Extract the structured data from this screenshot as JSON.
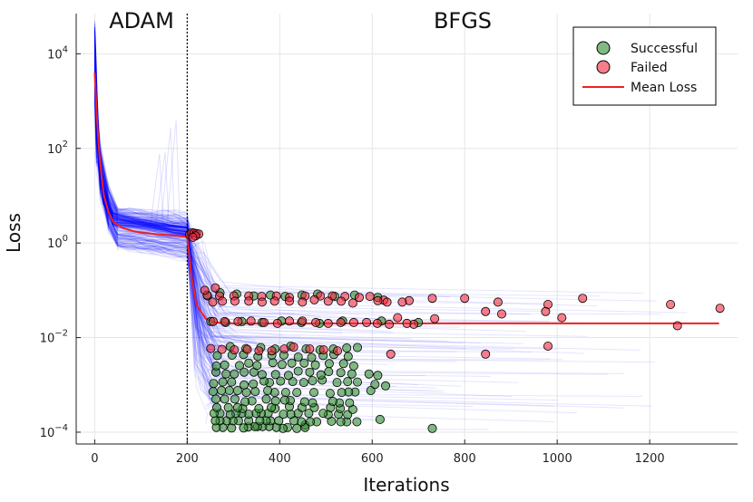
{
  "chart_data": {
    "type": "line",
    "title": "",
    "xlabel": "Iterations",
    "ylabel": "Loss",
    "yscale": "log10",
    "xlim": [
      -40,
      1390
    ],
    "ylim_exponent": [
      -4.25,
      4.85
    ],
    "x_ticks": [
      {
        "value": 0,
        "label": "0"
      },
      {
        "value": 200,
        "label": "200"
      },
      {
        "value": 400,
        "label": "400"
      },
      {
        "value": 600,
        "label": "600"
      },
      {
        "value": 800,
        "label": "800"
      },
      {
        "value": 1000,
        "label": "1000"
      },
      {
        "value": 1200,
        "label": "1200"
      }
    ],
    "y_ticks": [
      {
        "exponent": 4,
        "base": "10",
        "sup": "4"
      },
      {
        "exponent": 2,
        "base": "10",
        "sup": "2"
      },
      {
        "exponent": 0,
        "base": "10",
        "sup": "0"
      },
      {
        "exponent": -2,
        "base": "10",
        "sup": "−2"
      },
      {
        "exponent": -4,
        "base": "10",
        "sup": "−4"
      }
    ],
    "grid": true,
    "phase_divider": {
      "x": 200,
      "left_label": "ADAM",
      "right_label": "BFGS"
    },
    "legend": {
      "position": "top-right",
      "entries": [
        {
          "label": "Successful",
          "color": "#2e8b2e",
          "marker": "circle"
        },
        {
          "label": "Failed",
          "color": "#f0283c",
          "marker": "circle"
        },
        {
          "label": "Mean Loss",
          "color": "#ee2222",
          "marker": "line"
        }
      ]
    },
    "colors": {
      "runs": "#0000ff",
      "mean": "#ee2222",
      "successful": "#2e8b2e",
      "failed": "#f0283c"
    },
    "mean_loss": {
      "name": "Mean Loss",
      "x": [
        0,
        2,
        5,
        10,
        15,
        20,
        30,
        40,
        60,
        80,
        100,
        140,
        180,
        200,
        205,
        210,
        220,
        240,
        260,
        300,
        400,
        600,
        1350
      ],
      "log10_y": [
        3.6,
        3.2,
        2.6,
        1.9,
        1.4,
        1.0,
        0.65,
        0.45,
        0.32,
        0.26,
        0.22,
        0.18,
        0.15,
        0.13,
        -0.3,
        -0.75,
        -1.3,
        -1.6,
        -1.68,
        -1.7,
        -1.7,
        -1.7,
        -1.7
      ]
    },
    "series": [
      {
        "name": "Successful",
        "points": [
          [
            730,
            -3.92
          ],
          [
            455,
            -3.85
          ],
          [
            455,
            -3.9
          ],
          [
            437,
            -3.92
          ],
          [
            417,
            -3.9
          ],
          [
            407,
            -3.92
          ],
          [
            393,
            -3.9
          ],
          [
            377,
            -3.88
          ],
          [
            363,
            -3.88
          ],
          [
            352,
            -3.88
          ],
          [
            346,
            -3.88
          ],
          [
            332,
            -3.89
          ],
          [
            322,
            -3.91
          ],
          [
            296,
            -3.91
          ],
          [
            277,
            -3.9
          ],
          [
            263,
            -3.9
          ],
          [
            617,
            -3.73
          ],
          [
            545,
            -3.78
          ],
          [
            567,
            -3.78
          ],
          [
            532,
            -3.78
          ],
          [
            512,
            -3.77
          ],
          [
            480,
            -3.78
          ],
          [
            466,
            -3.78
          ],
          [
            447,
            -3.78
          ],
          [
            431,
            -3.76
          ],
          [
            398,
            -3.76
          ],
          [
            380,
            -3.76
          ],
          [
            371,
            -3.76
          ],
          [
            357,
            -3.76
          ],
          [
            333,
            -3.76
          ],
          [
            311,
            -3.76
          ],
          [
            299,
            -3.76
          ],
          [
            285,
            -3.76
          ],
          [
            271,
            -3.76
          ],
          [
            261,
            -3.76
          ],
          [
            547,
            -3.63
          ],
          [
            527,
            -3.62
          ],
          [
            505,
            -3.63
          ],
          [
            494,
            -3.6
          ],
          [
            463,
            -3.6
          ],
          [
            440,
            -3.6
          ],
          [
            424,
            -3.62
          ],
          [
            408,
            -3.62
          ],
          [
            375,
            -3.6
          ],
          [
            360,
            -3.6
          ],
          [
            349,
            -3.6
          ],
          [
            333,
            -3.62
          ],
          [
            318,
            -3.6
          ],
          [
            305,
            -3.6
          ],
          [
            293,
            -3.63
          ],
          [
            271,
            -3.6
          ],
          [
            258,
            -3.6
          ],
          [
            558,
            -3.52
          ],
          [
            531,
            -3.5
          ],
          [
            510,
            -3.48
          ],
          [
            475,
            -3.48
          ],
          [
            448,
            -3.48
          ],
          [
            421,
            -3.46
          ],
          [
            390,
            -3.5
          ],
          [
            382,
            -3.48
          ],
          [
            355,
            -3.5
          ],
          [
            320,
            -3.5
          ],
          [
            309,
            -3.48
          ],
          [
            289,
            -3.48
          ],
          [
            264,
            -3.48
          ],
          [
            551,
            -3.38
          ],
          [
            529,
            -3.38
          ],
          [
            515,
            -3.35
          ],
          [
            471,
            -3.38
          ],
          [
            454,
            -3.36
          ],
          [
            423,
            -3.33
          ],
          [
            411,
            -3.32
          ],
          [
            391,
            -3.34
          ],
          [
            371,
            -3.3
          ],
          [
            340,
            -3.34
          ],
          [
            325,
            -3.36
          ],
          [
            303,
            -3.3
          ],
          [
            281,
            -3.3
          ],
          [
            262,
            -3.3
          ],
          [
            597,
            -3.12
          ],
          [
            563,
            -3.15
          ],
          [
            549,
            -3.15
          ],
          [
            534,
            -3.16
          ],
          [
            509,
            -3.18
          ],
          [
            474,
            -3.16
          ],
          [
            437,
            -3.16
          ],
          [
            413,
            -3.16
          ],
          [
            389,
            -3.16
          ],
          [
            374,
            -3.12
          ],
          [
            347,
            -3.14
          ],
          [
            328,
            -3.16
          ],
          [
            309,
            -3.12
          ],
          [
            291,
            -3.12
          ],
          [
            274,
            -3.12
          ],
          [
            256,
            -3.14
          ],
          [
            629,
            -3.02
          ],
          [
            606,
            -2.99
          ],
          [
            568,
            -2.94
          ],
          [
            547,
            -2.93
          ],
          [
            524,
            -2.95
          ],
          [
            492,
            -2.9
          ],
          [
            471,
            -2.91
          ],
          [
            452,
            -2.95
          ],
          [
            428,
            -2.93
          ],
          [
            402,
            -2.92
          ],
          [
            378,
            -2.95
          ],
          [
            366,
            -2.92
          ],
          [
            343,
            -2.98
          ],
          [
            323,
            -3.0
          ],
          [
            296,
            -2.94
          ],
          [
            277,
            -2.94
          ],
          [
            257,
            -2.97
          ],
          [
            612,
            -2.8
          ],
          [
            593,
            -2.77
          ],
          [
            556,
            -2.77
          ],
          [
            532,
            -2.74
          ],
          [
            506,
            -2.72
          ],
          [
            489,
            -2.79
          ],
          [
            465,
            -2.73
          ],
          [
            440,
            -2.71
          ],
          [
            419,
            -2.8
          ],
          [
            391,
            -2.78
          ],
          [
            362,
            -2.78
          ],
          [
            344,
            -2.73
          ],
          [
            323,
            -2.73
          ],
          [
            302,
            -2.77
          ],
          [
            284,
            -2.77
          ],
          [
            262,
            -2.73
          ],
          [
            560,
            -2.6
          ],
          [
            538,
            -2.55
          ],
          [
            507,
            -2.55
          ],
          [
            477,
            -2.58
          ],
          [
            453,
            -2.54
          ],
          [
            426,
            -2.54
          ],
          [
            405,
            -2.57
          ],
          [
            385,
            -2.53
          ],
          [
            351,
            -2.59
          ],
          [
            333,
            -2.54
          ],
          [
            313,
            -2.59
          ],
          [
            281,
            -2.58
          ],
          [
            263,
            -2.6
          ],
          [
            548,
            -2.4
          ],
          [
            517,
            -2.36
          ],
          [
            494,
            -2.38
          ],
          [
            469,
            -2.42
          ],
          [
            440,
            -2.41
          ],
          [
            409,
            -2.37
          ],
          [
            383,
            -2.37
          ],
          [
            353,
            -2.4
          ],
          [
            322,
            -2.36
          ],
          [
            297,
            -2.37
          ],
          [
            265,
            -2.38
          ],
          [
            568,
            -2.21
          ],
          [
            545,
            -2.22
          ],
          [
            516,
            -2.24
          ],
          [
            487,
            -2.26
          ],
          [
            457,
            -2.24
          ],
          [
            424,
            -2.18
          ],
          [
            390,
            -2.24
          ],
          [
            359,
            -2.21
          ],
          [
            327,
            -2.23
          ],
          [
            293,
            -2.19
          ],
          [
            700,
            -1.68
          ],
          [
            620,
            -1.65
          ],
          [
            536,
            -1.65
          ],
          [
            486,
            -1.7
          ],
          [
            447,
            -1.68
          ],
          [
            404,
            -1.65
          ],
          [
            362,
            -1.68
          ],
          [
            318,
            -1.66
          ],
          [
            283,
            -1.68
          ],
          [
            251,
            -1.66
          ],
          [
            612,
            -1.15
          ],
          [
            562,
            -1.1
          ],
          [
            519,
            -1.13
          ],
          [
            482,
            -1.08
          ],
          [
            448,
            -1.1
          ],
          [
            412,
            -1.13
          ],
          [
            380,
            -1.1
          ],
          [
            344,
            -1.12
          ],
          [
            307,
            -1.08
          ],
          [
            271,
            -1.05
          ],
          [
            244,
            -1.12
          ]
        ]
      },
      {
        "name": "Failed",
        "points": [
          [
            205,
            0.18
          ],
          [
            210,
            0.22
          ],
          [
            215,
            0.21
          ],
          [
            220,
            0.2
          ],
          [
            225,
            0.19
          ],
          [
            218,
            0.15
          ],
          [
            212,
            0.12
          ],
          [
            1352,
            -1.38
          ],
          [
            1245,
            -1.3
          ],
          [
            1055,
            -1.17
          ],
          [
            980,
            -1.3
          ],
          [
            872,
            -1.25
          ],
          [
            800,
            -1.17
          ],
          [
            730,
            -1.17
          ],
          [
            680,
            -1.22
          ],
          [
            625,
            -1.21
          ],
          [
            595,
            -1.13
          ],
          [
            572,
            -1.15
          ],
          [
            541,
            -1.13
          ],
          [
            514,
            -1.12
          ],
          [
            488,
            -1.12
          ],
          [
            455,
            -1.12
          ],
          [
            421,
            -1.15
          ],
          [
            393,
            -1.12
          ],
          [
            361,
            -1.13
          ],
          [
            333,
            -1.12
          ],
          [
            301,
            -1.12
          ],
          [
            270,
            -1.12
          ],
          [
            243,
            -1.1
          ],
          [
            665,
            -1.25
          ],
          [
            632,
            -1.25
          ],
          [
            612,
            -1.22
          ],
          [
            558,
            -1.27
          ],
          [
            533,
            -1.23
          ],
          [
            505,
            -1.23
          ],
          [
            475,
            -1.2
          ],
          [
            449,
            -1.25
          ],
          [
            421,
            -1.23
          ],
          [
            389,
            -1.23
          ],
          [
            362,
            -1.25
          ],
          [
            333,
            -1.23
          ],
          [
            303,
            -1.23
          ],
          [
            276,
            -1.23
          ],
          [
            255,
            -1.25
          ],
          [
            261,
            -0.95
          ],
          [
            238,
            -1.0
          ],
          [
            1260,
            -1.75
          ],
          [
            1010,
            -1.58
          ],
          [
            975,
            -1.45
          ],
          [
            880,
            -1.5
          ],
          [
            845,
            -1.45
          ],
          [
            735,
            -1.6
          ],
          [
            690,
            -1.72
          ],
          [
            675,
            -1.7
          ],
          [
            655,
            -1.58
          ],
          [
            637,
            -1.72
          ],
          [
            611,
            -1.7
          ],
          [
            588,
            -1.68
          ],
          [
            560,
            -1.68
          ],
          [
            532,
            -1.68
          ],
          [
            505,
            -1.7
          ],
          [
            478,
            -1.68
          ],
          [
            449,
            -1.65
          ],
          [
            421,
            -1.65
          ],
          [
            395,
            -1.7
          ],
          [
            366,
            -1.68
          ],
          [
            338,
            -1.65
          ],
          [
            310,
            -1.66
          ],
          [
            281,
            -1.66
          ],
          [
            256,
            -1.66
          ],
          [
            980,
            -2.18
          ],
          [
            845,
            -2.35
          ],
          [
            640,
            -2.35
          ],
          [
            525,
            -2.28
          ],
          [
            495,
            -2.26
          ],
          [
            465,
            -2.24
          ],
          [
            430,
            -2.2
          ],
          [
            410,
            -2.24
          ],
          [
            383,
            -2.28
          ],
          [
            355,
            -2.28
          ],
          [
            330,
            -2.25
          ],
          [
            302,
            -2.26
          ],
          [
            275,
            -2.25
          ],
          [
            251,
            -2.23
          ]
        ]
      }
    ]
  }
}
